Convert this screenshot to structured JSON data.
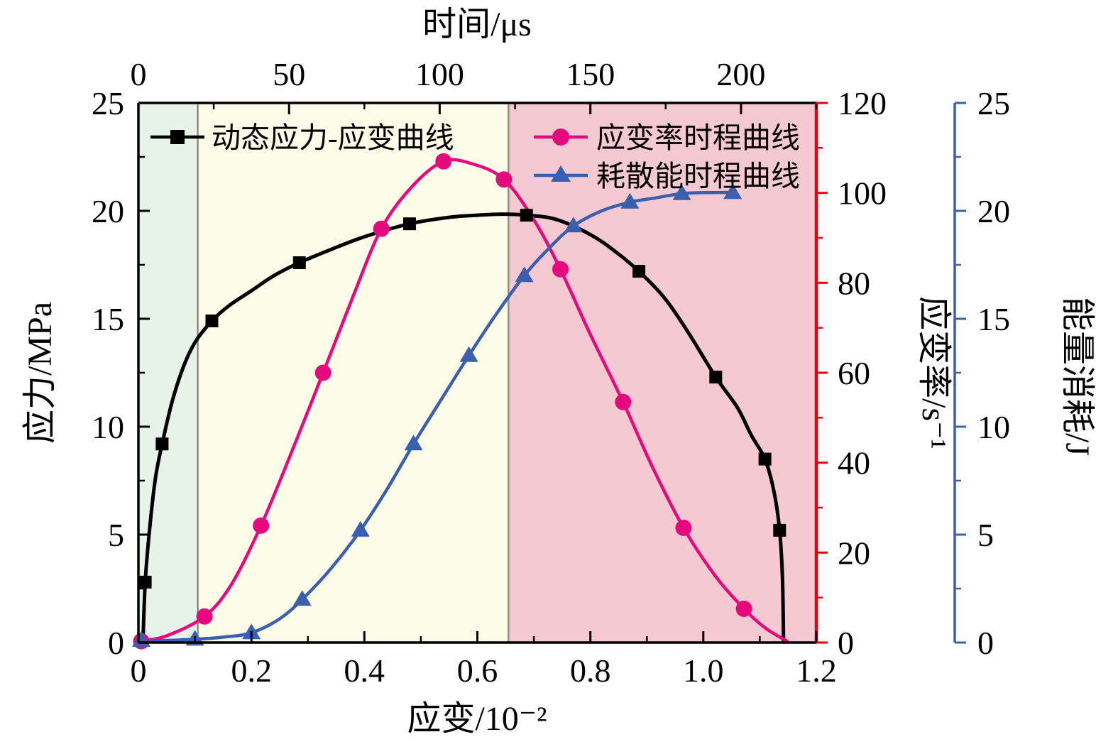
{
  "chart_data": {
    "type": "line",
    "title": "",
    "x_unit": "strain / 10^-2 (bottom axis), time / us (top axis)",
    "axes": {
      "top": {
        "label": "时间/μs",
        "range": [
          0,
          225
        ],
        "ticks": [
          0,
          50,
          100,
          150,
          200
        ],
        "tick_labels": [
          "0",
          "50",
          "100",
          "150",
          "200"
        ],
        "minor_step": 25,
        "color": "#000000"
      },
      "bottom": {
        "label": "应变/10⁻²",
        "range": [
          0,
          1.2
        ],
        "ticks": [
          0,
          0.2,
          0.4,
          0.6,
          0.8,
          1.0,
          1.2
        ],
        "tick_labels": [
          "0",
          "0.2",
          "0.4",
          "0.6",
          "0.8",
          "1.0",
          "1.2"
        ],
        "minor_step": 0.1,
        "color": "#000000"
      },
      "left": {
        "label": "应力/MPa",
        "range": [
          0,
          25
        ],
        "ticks": [
          0,
          5,
          10,
          15,
          20,
          25
        ],
        "tick_labels": [
          "0",
          "5",
          "10",
          "15",
          "20",
          "25"
        ],
        "minor_step": 2.5,
        "color": "#000000"
      },
      "rate": {
        "label": "应变率/s⁻¹",
        "range": [
          0,
          120
        ],
        "ticks": [
          0,
          20,
          40,
          60,
          80,
          100,
          120
        ],
        "tick_labels": [
          "0",
          "20",
          "40",
          "60",
          "80",
          "100",
          "120"
        ],
        "minor_step": 10,
        "color": "#e60012"
      },
      "energy": {
        "label": "能量消耗/J",
        "range": [
          0,
          25
        ],
        "ticks": [
          0,
          5,
          10,
          15,
          20,
          25
        ],
        "tick_labels": [
          "0",
          "5",
          "10",
          "15",
          "20",
          "25"
        ],
        "minor_step": 2.5,
        "color": "#3a5fae"
      }
    },
    "regions": [
      {
        "from": 0,
        "to": 0.105,
        "fill": "#e7f2e9"
      },
      {
        "from": 0.105,
        "to": 0.655,
        "fill": "#fcfce9"
      },
      {
        "from": 0.655,
        "to": 1.2,
        "fill": "#f4c9d1"
      }
    ],
    "region_dividers": {
      "positions": [
        0.105,
        0.655
      ],
      "color": "#8c8c8c"
    },
    "series": [
      {
        "name": "动态应力-应变曲线",
        "y_axis": "left",
        "marker": "square",
        "color": "#000000",
        "points": [
          [
            0.008,
            0
          ],
          [
            0.012,
            2.8
          ],
          [
            0.02,
            5.3
          ],
          [
            0.03,
            7.6
          ],
          [
            0.042,
            9.2
          ],
          [
            0.06,
            11.2
          ],
          [
            0.08,
            12.8
          ],
          [
            0.1,
            13.9
          ],
          [
            0.13,
            14.9
          ],
          [
            0.16,
            15.6
          ],
          [
            0.2,
            16.3
          ],
          [
            0.24,
            17.0
          ],
          [
            0.285,
            17.6
          ],
          [
            0.34,
            18.2
          ],
          [
            0.4,
            18.8
          ],
          [
            0.48,
            19.4
          ],
          [
            0.55,
            19.7
          ],
          [
            0.6,
            19.8
          ],
          [
            0.645,
            19.85
          ],
          [
            0.687,
            19.8
          ],
          [
            0.74,
            19.6
          ],
          [
            0.8,
            18.9
          ],
          [
            0.845,
            18.1
          ],
          [
            0.886,
            17.2
          ],
          [
            0.93,
            16.0
          ],
          [
            0.97,
            14.5
          ],
          [
            1.022,
            12.3
          ],
          [
            1.06,
            10.9
          ],
          [
            1.085,
            9.6
          ],
          [
            1.109,
            8.5
          ],
          [
            1.125,
            7.0
          ],
          [
            1.135,
            5.2
          ],
          [
            1.14,
            3.0
          ],
          [
            1.142,
            0
          ]
        ],
        "marker_points": [
          [
            0.012,
            2.8
          ],
          [
            0.042,
            9.2
          ],
          [
            0.13,
            14.9
          ],
          [
            0.285,
            17.6
          ],
          [
            0.48,
            19.4
          ],
          [
            0.687,
            19.8
          ],
          [
            0.886,
            17.2
          ],
          [
            1.022,
            12.3
          ],
          [
            1.109,
            8.5
          ],
          [
            1.135,
            5.2
          ]
        ]
      },
      {
        "name": "应变率时程曲线",
        "y_axis": "rate",
        "marker": "circle",
        "color": "#e6097d",
        "points": [
          [
            0.005,
            0.3
          ],
          [
            0.05,
            1.5
          ],
          [
            0.117,
            5.8
          ],
          [
            0.165,
            13
          ],
          [
            0.217,
            26
          ],
          [
            0.27,
            42
          ],
          [
            0.327,
            60
          ],
          [
            0.38,
            77
          ],
          [
            0.43,
            92
          ],
          [
            0.485,
            101.5
          ],
          [
            0.54,
            107
          ],
          [
            0.59,
            106.5
          ],
          [
            0.647,
            103
          ],
          [
            0.7,
            94
          ],
          [
            0.747,
            83
          ],
          [
            0.8,
            68.5
          ],
          [
            0.858,
            53.5
          ],
          [
            0.91,
            39
          ],
          [
            0.965,
            25.5
          ],
          [
            1.02,
            15
          ],
          [
            1.072,
            7.5
          ],
          [
            1.11,
            3.2
          ],
          [
            1.148,
            0.3
          ]
        ],
        "marker_points": [
          [
            0.005,
            0.3
          ],
          [
            0.117,
            5.8
          ],
          [
            0.217,
            26
          ],
          [
            0.327,
            60
          ],
          [
            0.43,
            92
          ],
          [
            0.54,
            107
          ],
          [
            0.647,
            103
          ],
          [
            0.747,
            83
          ],
          [
            0.858,
            53.5
          ],
          [
            0.965,
            25.5
          ],
          [
            1.072,
            7.5
          ]
        ]
      },
      {
        "name": "耗散能时程曲线",
        "y_axis": "energy",
        "marker": "triangle",
        "color": "#3a5fae",
        "points": [
          [
            0.005,
            0.1
          ],
          [
            0.05,
            0.1
          ],
          [
            0.1,
            0.15
          ],
          [
            0.15,
            0.25
          ],
          [
            0.2,
            0.45
          ],
          [
            0.25,
            1.1
          ],
          [
            0.29,
            2.0
          ],
          [
            0.34,
            3.4
          ],
          [
            0.393,
            5.2
          ],
          [
            0.44,
            7.1
          ],
          [
            0.487,
            9.2
          ],
          [
            0.537,
            11.3
          ],
          [
            0.585,
            13.3
          ],
          [
            0.633,
            15.2
          ],
          [
            0.683,
            17.0
          ],
          [
            0.728,
            18.3
          ],
          [
            0.77,
            19.3
          ],
          [
            0.82,
            20.0
          ],
          [
            0.87,
            20.4
          ],
          [
            0.915,
            20.6
          ],
          [
            0.962,
            20.8
          ],
          [
            1.01,
            20.85
          ],
          [
            1.052,
            20.85
          ]
        ],
        "marker_points": [
          [
            0.005,
            0.1
          ],
          [
            0.1,
            0.15
          ],
          [
            0.2,
            0.45
          ],
          [
            0.29,
            2.0
          ],
          [
            0.393,
            5.2
          ],
          [
            0.487,
            9.2
          ],
          [
            0.585,
            13.3
          ],
          [
            0.683,
            17.0
          ],
          [
            0.77,
            19.3
          ],
          [
            0.87,
            20.4
          ],
          [
            0.962,
            20.8
          ],
          [
            1.052,
            20.85
          ]
        ]
      }
    ],
    "legend": [
      {
        "label": "动态应力-应变曲线"
      },
      {
        "label": "应变率时程曲线"
      },
      {
        "label": "耗散能时程曲线"
      }
    ]
  }
}
